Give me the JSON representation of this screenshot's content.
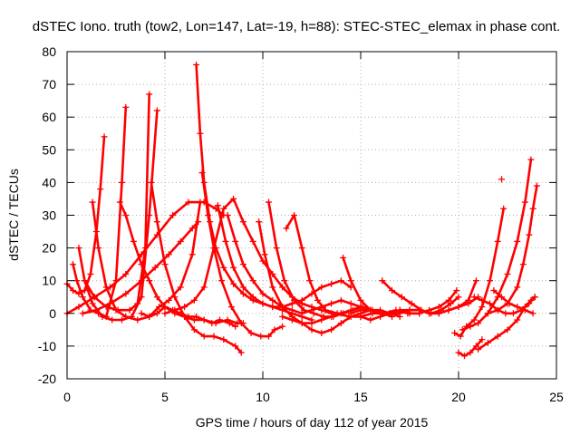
{
  "chart_data": {
    "type": "scatter",
    "title": "dSTEC Iono. truth (tow2, Lon=147, Lat=-19, h=88): STEC-STEC_elemax in phase cont.",
    "xlabel": "GPS time / hours of day 112 of year 2015",
    "ylabel": "dSTEC  / TECUs",
    "xlim": [
      0,
      25
    ],
    "ylim": [
      -20,
      80
    ],
    "xticks": [
      0,
      5,
      10,
      15,
      20,
      25
    ],
    "yticks": [
      -20,
      -10,
      0,
      10,
      20,
      30,
      40,
      50,
      60,
      70,
      80
    ],
    "grid": true,
    "marker": "plus",
    "color": "#ff0000",
    "series": [
      {
        "x": [
          0.0,
          0.3,
          0.6,
          0.9,
          1.2,
          1.5,
          1.7,
          1.9
        ],
        "y": [
          9,
          7,
          6,
          7,
          12,
          25,
          38,
          54
        ]
      },
      {
        "x": [
          0.3,
          0.5,
          0.8,
          1.2,
          1.6,
          2.0,
          2.5,
          2.8,
          3.0
        ],
        "y": [
          15,
          10,
          5,
          1,
          0,
          -1,
          10,
          40,
          63
        ]
      },
      {
        "x": [
          0.6,
          0.9,
          1.3,
          1.8,
          2.3,
          2.8,
          3.3,
          3.8,
          4.2,
          4.6
        ],
        "y": [
          20,
          10,
          3,
          -1,
          -2,
          -2,
          -1,
          5,
          30,
          62
        ]
      },
      {
        "x": [
          0.9,
          1.4,
          2.0,
          2.6,
          3.2,
          3.6,
          4.0,
          4.2
        ],
        "y": [
          10,
          5,
          2,
          1,
          1,
          3,
          20,
          67
        ]
      },
      {
        "x": [
          1.3,
          1.6,
          2.0,
          2.5,
          3.0,
          3.6,
          4.2,
          4.7,
          5.2,
          5.8,
          6.4,
          6.8
        ],
        "y": [
          34,
          20,
          8,
          1,
          -1,
          -2,
          -1,
          2,
          4,
          8,
          18,
          34
        ]
      },
      {
        "x": [
          0.8,
          1.5,
          2.2,
          3.0,
          3.8,
          4.5,
          5.2,
          5.8,
          6.4,
          6.7
        ],
        "y": [
          0,
          1,
          3,
          6,
          10,
          14,
          18,
          22,
          26,
          28
        ]
      },
      {
        "x": [
          0.0,
          0.6,
          1.4,
          2.2,
          3.0,
          3.8,
          4.6,
          5.4,
          6.2,
          7.0,
          7.6,
          8.0
        ],
        "y": [
          0,
          2,
          5,
          8,
          12,
          18,
          24,
          30,
          34,
          34,
          32,
          30
        ]
      },
      {
        "x": [
          2.7,
          3.0,
          3.4,
          3.8,
          4.2,
          4.6,
          5.0,
          5.5,
          6.0,
          6.5,
          7.0,
          7.6,
          8.2,
          8.7,
          9.0
        ],
        "y": [
          34,
          30,
          22,
          15,
          10,
          5,
          2,
          0,
          -1,
          -2,
          -2,
          -3,
          -2,
          -3,
          -3
        ]
      },
      {
        "x": [
          4.3,
          4.6,
          5.0,
          5.5,
          6.0,
          6.5,
          7.0,
          7.5,
          8.0,
          8.6,
          8.9
        ],
        "y": [
          40,
          28,
          15,
          5,
          -1,
          -5,
          -7,
          -7,
          -8,
          -10,
          -12
        ]
      },
      {
        "x": [
          3.8,
          4.2,
          4.6,
          5.0,
          5.4,
          5.8,
          6.2,
          6.6,
          7.0,
          7.4,
          7.8,
          8.3,
          8.6
        ],
        "y": [
          0,
          -1,
          0,
          2,
          1,
          0,
          -1,
          -1,
          -2,
          -3,
          -2,
          -3,
          -4
        ]
      },
      {
        "x": [
          6.6,
          6.8,
          7.0,
          7.3,
          7.6,
          8.0,
          8.5,
          9.0,
          9.5,
          10.0,
          10.5,
          11.0,
          11.5,
          12.0,
          12.5
        ],
        "y": [
          76,
          55,
          40,
          28,
          20,
          14,
          9,
          6,
          4,
          3,
          2,
          1,
          0,
          -1,
          -2
        ]
      },
      {
        "x": [
          5.0,
          5.5,
          6.0,
          6.5,
          7.0,
          7.5,
          8.0,
          8.5,
          9.0,
          9.5,
          10.0,
          10.5,
          11.0,
          11.5,
          12.0,
          12.5,
          13.0,
          13.5,
          14.0
        ],
        "y": [
          0,
          1,
          2,
          4,
          8,
          20,
          32,
          35,
          28,
          22,
          16,
          12,
          8,
          5,
          3,
          2,
          1,
          0,
          0
        ]
      },
      {
        "x": [
          6.9,
          7.2,
          7.5,
          7.9,
          8.4,
          8.9,
          9.4,
          9.9,
          10.3,
          10.6,
          11.0
        ],
        "y": [
          43,
          30,
          20,
          10,
          2,
          -3,
          -6,
          -7,
          -7,
          -5,
          -4
        ]
      },
      {
        "x": [
          7.7,
          8.1,
          8.5,
          9.0,
          9.5,
          10.0,
          10.5,
          11.0,
          11.5,
          12.0,
          12.5,
          13.0,
          13.5,
          14.0,
          14.5
        ],
        "y": [
          33,
          22,
          14,
          8,
          5,
          3,
          2,
          2,
          3,
          4,
          6,
          8,
          9,
          10,
          8
        ]
      },
      {
        "x": [
          8.2,
          8.6,
          9.0,
          9.5,
          10.0,
          10.5,
          11.0,
          11.5,
          12.0,
          12.5,
          13.0,
          13.5,
          14.0,
          14.5,
          15.0
        ],
        "y": [
          30,
          22,
          15,
          10,
          6,
          4,
          2,
          1,
          0,
          1,
          2,
          3,
          4,
          3,
          2
        ]
      },
      {
        "x": [
          9.8,
          10.1,
          10.5,
          11.0,
          11.5,
          12.0,
          12.5,
          13.0,
          13.5,
          14.0,
          14.5,
          15.0,
          15.5,
          16.0
        ],
        "y": [
          28,
          18,
          8,
          2,
          -1,
          -3,
          -3,
          -2,
          -1,
          0,
          1,
          2,
          1,
          0
        ]
      },
      {
        "x": [
          10.3,
          10.7,
          11.1,
          11.6,
          12.1,
          12.6,
          13.1,
          13.6,
          14.1,
          14.6,
          15.1,
          15.6,
          16.1,
          16.6
        ],
        "y": [
          34,
          20,
          10,
          4,
          1,
          0,
          -1,
          -1,
          0,
          1,
          2,
          1,
          0,
          -1
        ]
      },
      {
        "x": [
          11.2,
          11.6,
          12.0,
          12.4,
          12.8,
          13.2,
          13.8,
          14.4,
          15.0,
          15.6,
          16.2,
          16.8,
          17.4,
          18.0
        ],
        "y": [
          26,
          30,
          20,
          10,
          4,
          1,
          0,
          -1,
          -1,
          0,
          0,
          1,
          0,
          0
        ]
      },
      {
        "x": [
          11.0,
          11.5,
          12.0,
          12.5,
          13.0,
          13.5,
          14.0,
          14.5,
          15.0,
          15.5,
          16.0,
          16.5,
          17.0
        ],
        "y": [
          -1,
          -2,
          -3,
          -5,
          -6,
          -5,
          -3,
          -1,
          0,
          1,
          1,
          0,
          -1
        ]
      },
      {
        "x": [
          14.1,
          14.5,
          15.0,
          15.5,
          16.0,
          16.5,
          17.0,
          17.5,
          18.0,
          18.5,
          19.0,
          19.5,
          19.9
        ],
        "y": [
          17,
          10,
          4,
          1,
          0,
          0,
          1,
          0,
          0,
          1,
          2,
          4,
          7
        ]
      },
      {
        "x": [
          15.0,
          15.5,
          16.0,
          16.5,
          17.0,
          17.5,
          18.0,
          18.5,
          19.0,
          19.5,
          20.0,
          20.5,
          20.9
        ],
        "y": [
          -1,
          -2,
          -1,
          0,
          0,
          1,
          1,
          0,
          0,
          1,
          2,
          4,
          10
        ]
      },
      {
        "x": [
          16.1,
          16.6,
          17.1,
          17.6,
          18.1,
          18.6,
          19.1,
          19.6,
          20.0
        ],
        "y": [
          10,
          7,
          5,
          3,
          1,
          0,
          1,
          3,
          5
        ]
      },
      {
        "x": [
          14.5,
          15.0,
          15.5,
          16.0,
          16.5,
          17.0,
          17.5,
          18.0,
          18.5,
          19.0,
          19.5,
          20.0,
          20.5,
          21.0
        ],
        "y": [
          0,
          1,
          1,
          0,
          0,
          1,
          1,
          1,
          0,
          0,
          1,
          2,
          3,
          5
        ]
      },
      {
        "x": [
          19.8,
          20.1,
          20.4,
          20.8,
          21.2,
          21.6,
          22.0,
          22.3
        ],
        "y": [
          -6,
          -7,
          -4,
          -2,
          2,
          10,
          22,
          32
        ]
      },
      {
        "x": [
          20.0,
          20.3,
          20.6,
          20.9,
          21.2
        ],
        "y": [
          -12,
          -13,
          -12,
          -10,
          -8
        ]
      },
      {
        "x": [
          20.2,
          20.6,
          21.0,
          21.5,
          22.0,
          22.5,
          23.0,
          23.4,
          23.7
        ],
        "y": [
          -5,
          -4,
          -3,
          0,
          5,
          12,
          22,
          34,
          47
        ]
      },
      {
        "x": [
          21.0,
          21.5,
          22.0,
          22.5,
          23.0,
          23.4,
          23.7,
          23.9
        ],
        "y": [
          -11,
          -9,
          -7,
          -5,
          -2,
          2,
          4,
          5
        ]
      },
      {
        "x": [
          21.5,
          22.0,
          22.5,
          23.0,
          23.3,
          23.6,
          23.8,
          24.0
        ],
        "y": [
          0,
          1,
          3,
          8,
          15,
          24,
          32,
          39
        ]
      },
      {
        "x": [
          20.8,
          21.2,
          21.6,
          22.0,
          22.4,
          22.8,
          23.2,
          23.6,
          23.9
        ],
        "y": [
          5,
          4,
          3,
          1,
          0,
          0,
          1,
          3,
          5
        ]
      },
      {
        "x": [
          21.8,
          22.2,
          22.6,
          23.0,
          23.4,
          23.8
        ],
        "y": [
          7,
          5,
          3,
          2,
          1,
          0
        ]
      },
      {
        "x": [
          22.2
        ],
        "y": [
          41
        ]
      }
    ]
  }
}
